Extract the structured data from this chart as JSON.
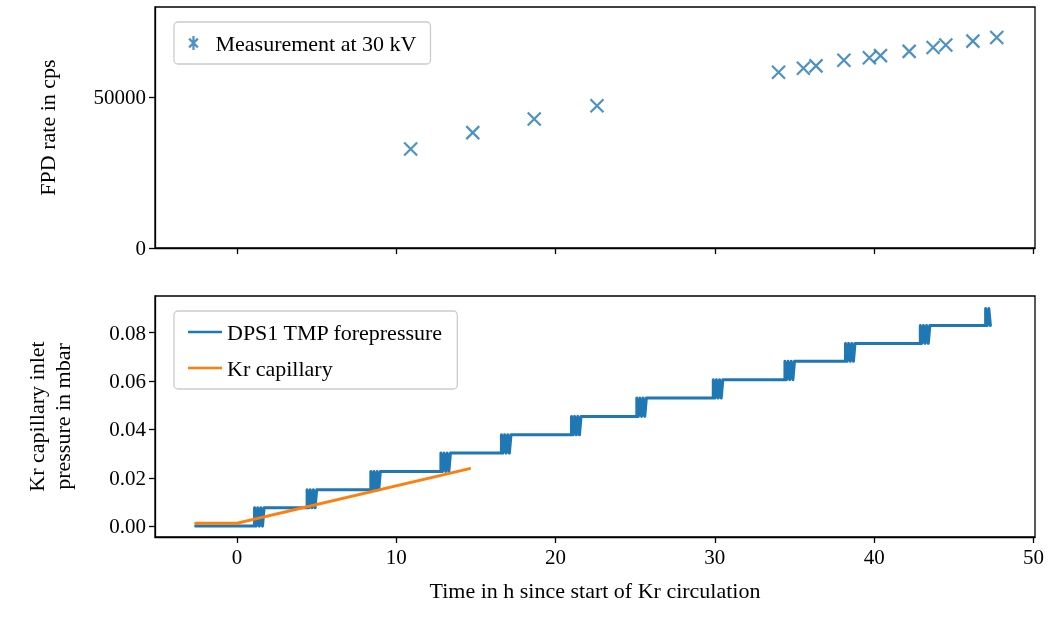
{
  "chart_data": [
    {
      "type": "scatter",
      "ylabel": "FPD rate in cps",
      "legend": "top left",
      "marker": "cross",
      "grid": false,
      "tick_labels": "y",
      "xlim": [
        -5.15,
        50.1
      ],
      "xticks": [
        0,
        10,
        20,
        30,
        40,
        50
      ],
      "ylim": [
        0,
        79800
      ],
      "yticks": [
        0,
        50000
      ],
      "series": [
        {
          "name": "Measurement at 30 kV",
          "color": "#1f77b4",
          "x": [
            10.9,
            14.8,
            18.66,
            22.6,
            34.0,
            35.56,
            36.35,
            38.1,
            39.7,
            40.4,
            42.2,
            43.7,
            44.5,
            46.2,
            47.7
          ],
          "values": [
            32800,
            38200,
            42700,
            47100,
            58200,
            59500,
            60300,
            62200,
            63000,
            63700,
            65100,
            66400,
            67200,
            68500,
            69700
          ]
        }
      ]
    },
    {
      "type": "line",
      "xlabel": "Time in h since start of Kr circulation",
      "ylabel": "Kr capillary inlet\npressure in mbar",
      "legend": "top left",
      "marker": "none",
      "line_style": "solid",
      "grid": false,
      "xlim": [
        -5.15,
        50.1
      ],
      "xticks": [
        0,
        10,
        20,
        30,
        40,
        50
      ],
      "ylim": [
        -0.0045,
        0.0952
      ],
      "yticks": [
        {
          "value": 0,
          "label": "0.00"
        },
        {
          "value": 0.02,
          "label": "0.02"
        },
        {
          "value": 0.04,
          "label": "0.04"
        },
        {
          "value": 0.06,
          "label": "0.06"
        },
        {
          "value": 0.08,
          "label": "0.08"
        }
      ],
      "series": [
        {
          "name": "DPS1 TMP forepressure",
          "color": "#1f77b4",
          "x": [
            -2.6,
            1.1,
            1.1,
            1.2,
            1.3,
            1.4,
            1.5,
            1.6,
            1.7,
            4.4,
            4.4,
            4.5,
            4.6,
            4.7,
            4.8,
            4.9,
            5.0,
            8.4,
            8.4,
            8.5,
            8.6,
            8.7,
            8.8,
            8.9,
            9.0,
            12.8,
            12.8,
            12.9,
            13.0,
            13.1,
            13.2,
            13.3,
            13.4,
            16.6,
            16.6,
            16.7,
            16.8,
            16.9,
            17.0,
            17.1,
            17.2,
            21.0,
            21.0,
            21.1,
            21.2,
            21.3,
            21.4,
            21.5,
            21.6,
            25.1,
            25.1,
            25.2,
            25.3,
            25.4,
            25.5,
            25.6,
            25.7,
            29.9,
            29.9,
            30.0,
            30.1,
            30.2,
            30.3,
            30.4,
            30.5,
            34.4,
            34.4,
            34.5,
            34.6,
            34.7,
            34.8,
            34.9,
            35.0,
            38.2,
            38.2,
            38.3,
            38.4,
            38.5,
            38.6,
            38.7,
            38.8,
            42.9,
            42.9,
            43.0,
            43.1,
            43.2,
            43.3,
            43.4,
            43.5,
            47.0,
            47.0,
            47.1,
            47.2,
            47.3
          ],
          "values": [
            0.0,
            0.0,
            0.0076,
            0.0,
            0.0076,
            0.0,
            0.0076,
            0.0,
            0.0076,
            0.0076,
            0.015,
            0.0076,
            0.015,
            0.0076,
            0.015,
            0.0076,
            0.015,
            0.015,
            0.0226,
            0.015,
            0.0226,
            0.015,
            0.0226,
            0.015,
            0.0226,
            0.0226,
            0.0302,
            0.0226,
            0.0302,
            0.0226,
            0.0302,
            0.0226,
            0.0302,
            0.0302,
            0.0378,
            0.0302,
            0.0378,
            0.0302,
            0.0378,
            0.0302,
            0.0378,
            0.0378,
            0.0454,
            0.0378,
            0.0454,
            0.0378,
            0.0454,
            0.0378,
            0.0454,
            0.0454,
            0.053,
            0.0454,
            0.053,
            0.0454,
            0.053,
            0.0454,
            0.053,
            0.053,
            0.0606,
            0.053,
            0.0606,
            0.053,
            0.0606,
            0.053,
            0.0606,
            0.0606,
            0.0682,
            0.0606,
            0.0682,
            0.0606,
            0.0682,
            0.0606,
            0.0682,
            0.0682,
            0.0756,
            0.0682,
            0.0756,
            0.0682,
            0.0756,
            0.0682,
            0.0756,
            0.0756,
            0.083,
            0.0756,
            0.083,
            0.0756,
            0.083,
            0.0756,
            0.083,
            0.083,
            0.09,
            0.083,
            0.09,
            0.083
          ]
        },
        {
          "name": "Kr capillary",
          "color": "#ff7f0e",
          "x": [
            -2.6,
            0.0,
            14.6
          ],
          "values": [
            0.0012,
            0.0012,
            0.0238
          ]
        }
      ]
    }
  ]
}
